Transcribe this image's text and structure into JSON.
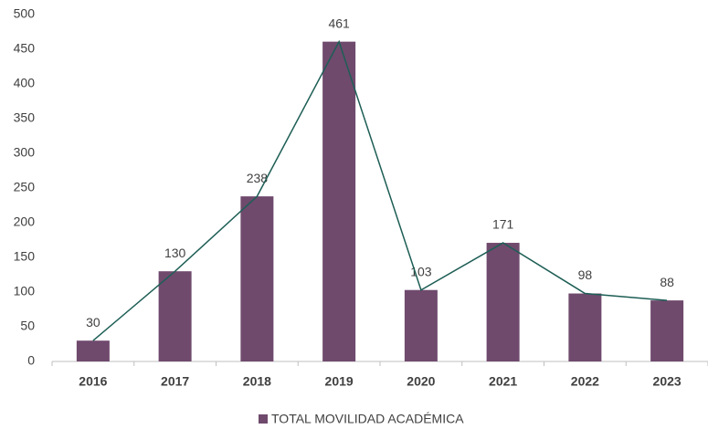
{
  "chart_data": {
    "type": "bar",
    "categories": [
      "2016",
      "2017",
      "2018",
      "2019",
      "2020",
      "2021",
      "2022",
      "2023"
    ],
    "series": [
      {
        "name": "TOTAL MOVILIDAD ACADÉMICA",
        "color": "#6f4a6d",
        "values": [
          30,
          130,
          238,
          461,
          103,
          171,
          98,
          88
        ]
      }
    ],
    "line_overlay": true,
    "line_color": "#1d5e55",
    "ylim": [
      0,
      500
    ],
    "yticks": [
      0,
      50,
      100,
      150,
      200,
      250,
      300,
      350,
      400,
      450,
      500
    ],
    "grid": false,
    "legend": "bottom"
  }
}
